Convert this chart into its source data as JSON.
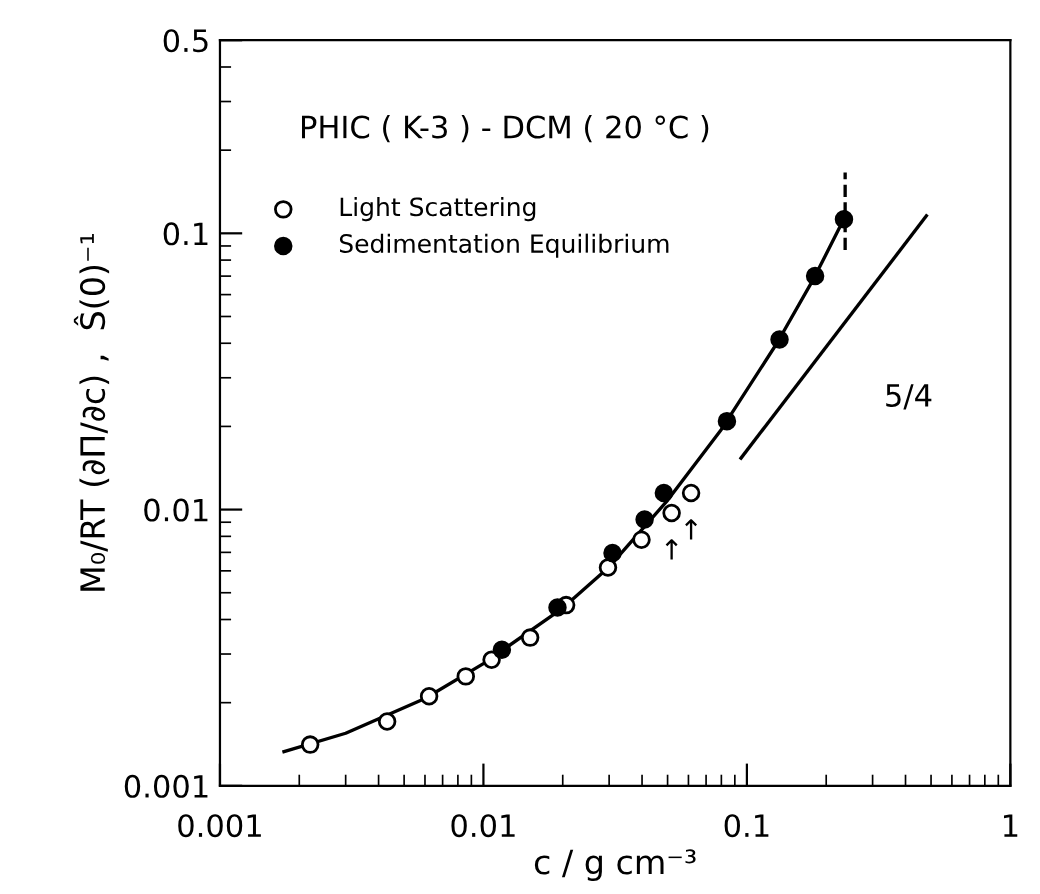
{
  "chart_data": {
    "type": "scatter",
    "xlabel": "c / g cm⁻³",
    "ylabel": "M₀/RT (∂Π/∂c) ,  Ŝ(0)⁻¹",
    "log": "xy",
    "xlim": [
      0.001,
      1
    ],
    "ylim": [
      0.001,
      0.5
    ],
    "xticks": [
      0.001,
      0.01,
      0.1,
      1
    ],
    "yticks": [
      0.001,
      0.01,
      0.1,
      0.5
    ],
    "grid": false,
    "legend": "top left",
    "series": [
      {
        "name": "Light Scattering",
        "marker": "circle",
        "color": "#ffffff",
        "x": [
          0.0022,
          0.00431,
          0.00622,
          0.00857,
          0.01074,
          0.01504,
          0.0206,
          0.0297,
          0.0398,
          0.0518,
          0.0614
        ],
        "values": [
          0.00141,
          0.00171,
          0.00211,
          0.00249,
          0.00286,
          0.00344,
          0.00451,
          0.00617,
          0.00778,
          0.00972,
          0.01148
        ]
      },
      {
        "name": "Sedimentation Equilibrium",
        "marker": "circle",
        "color": "#000000",
        "x": [
          0.01175,
          0.0191,
          0.0309,
          0.0409,
          0.0484,
          0.084,
          0.133,
          0.1815,
          0.2336
        ],
        "values": [
          0.00311,
          0.00442,
          0.00696,
          0.0092,
          0.01148,
          0.0209,
          0.0413,
          0.0701,
          0.1124
        ]
      },
      {
        "type": "line",
        "marker": "none",
        "line_style": "solid",
        "color": "#000000",
        "x": [
          0.00175,
          0.003,
          0.006,
          0.01,
          0.02,
          0.03,
          0.05,
          0.08,
          0.13,
          0.18,
          0.236
        ],
        "values": [
          0.00133,
          0.00155,
          0.00207,
          0.00277,
          0.0044,
          0.0062,
          0.0108,
          0.0195,
          0.04,
          0.069,
          0.115
        ]
      },
      {
        "type": "line",
        "marker": "none",
        "line_style": "dashed",
        "color": "#000000",
        "x": [
          0.236,
          0.236
        ],
        "values": [
          0.087,
          0.166
        ]
      },
      {
        "type": "line",
        "marker": "none",
        "line_style": "solid",
        "color": "#000000",
        "x": [
          0.095,
          0.48
        ],
        "values": [
          0.01536,
          0.1156
        ]
      }
    ],
    "annotations": [
      "PHIC ( K-3 ) - DCM ( 20 °C )",
      "5/4",
      {
        "text": "↑",
        "x": 0.0518,
        "y": 0.00972
      },
      {
        "text": "↑",
        "x": 0.0614,
        "y": 0.01148
      }
    ]
  }
}
